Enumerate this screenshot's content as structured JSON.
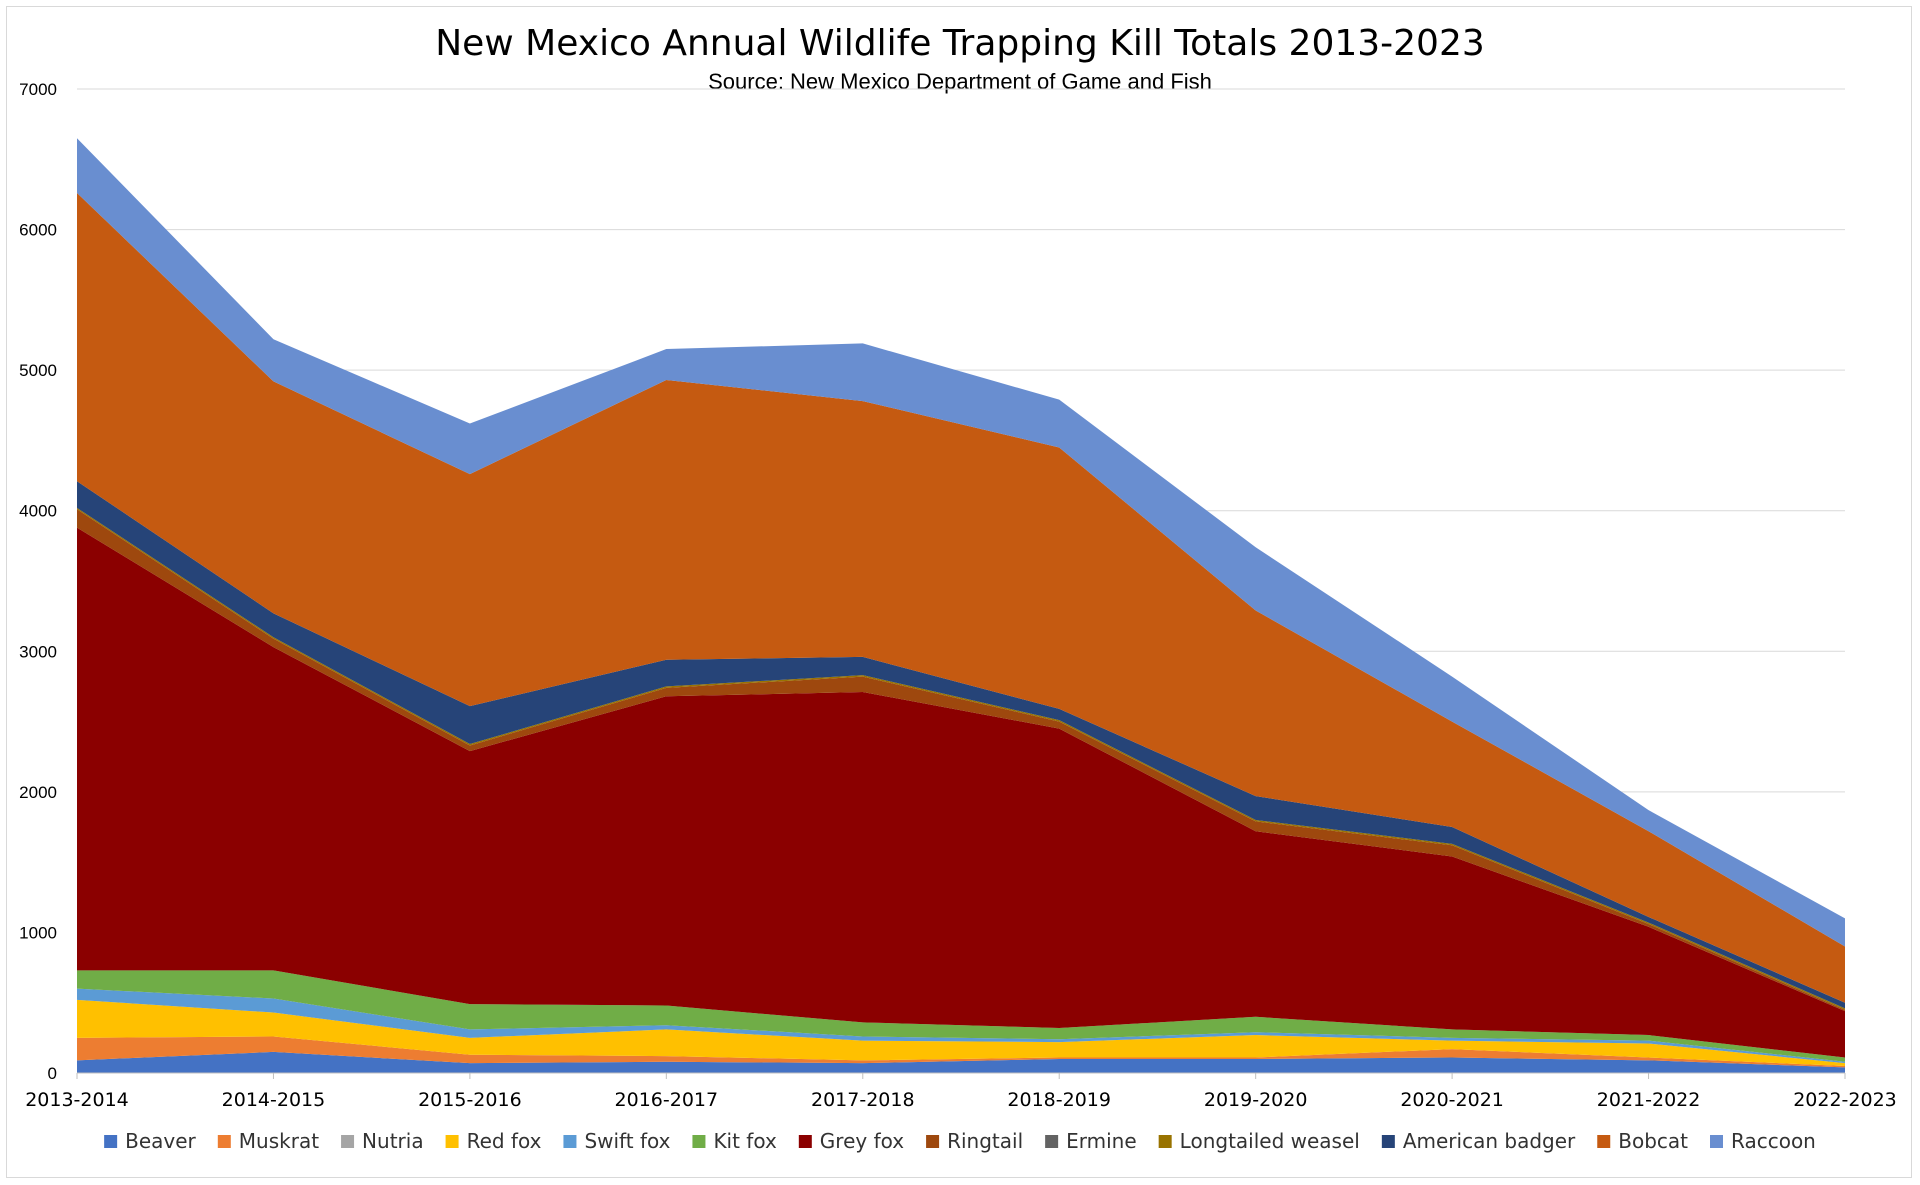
{
  "chart_data": {
    "type": "area",
    "stacked": true,
    "title": "New Mexico Annual Wildlife Trapping Kill Totals 2013-2023",
    "subtitle": "Source: New Mexico Department of Game and Fish",
    "xlabel": "",
    "ylabel": "",
    "ylim": [
      0,
      7000
    ],
    "yticks": [
      0,
      1000,
      2000,
      3000,
      4000,
      5000,
      6000,
      7000
    ],
    "grid": true,
    "legend_position": "bottom",
    "categories": [
      "2013-2014",
      "2014-2015",
      "2015-2016",
      "2016-2017",
      "2017-2018",
      "2018-2019",
      "2019-2020",
      "2020-2021",
      "2021-2022",
      "2022-2023"
    ],
    "series": [
      {
        "name": "Beaver",
        "color": "#4472C4",
        "values": [
          90,
          150,
          70,
          80,
          70,
          100,
          100,
          110,
          90,
          40
        ]
      },
      {
        "name": "Muskrat",
        "color": "#ED7D31",
        "values": [
          160,
          110,
          60,
          40,
          20,
          10,
          10,
          60,
          20,
          10
        ]
      },
      {
        "name": "Nutria",
        "color": "#A5A5A5",
        "values": [
          0,
          0,
          0,
          0,
          0,
          0,
          0,
          0,
          0,
          0
        ]
      },
      {
        "name": "Red fox",
        "color": "#FFC000",
        "values": [
          270,
          170,
          120,
          190,
          140,
          110,
          160,
          60,
          100,
          20
        ]
      },
      {
        "name": "Swift fox",
        "color": "#5B9BD5",
        "values": [
          80,
          100,
          60,
          30,
          30,
          20,
          20,
          20,
          20,
          10
        ]
      },
      {
        "name": "Kit fox",
        "color": "#70AD47",
        "values": [
          130,
          200,
          180,
          140,
          100,
          80,
          110,
          60,
          40,
          30
        ]
      },
      {
        "name": "Grey fox",
        "color": "#8B0000",
        "values": [
          3150,
          2300,
          1800,
          2200,
          2350,
          2130,
          1320,
          1230,
          770,
          330
        ]
      },
      {
        "name": "Ringtail",
        "color": "#9E480E",
        "values": [
          130,
          60,
          40,
          60,
          110,
          50,
          70,
          80,
          20,
          10
        ]
      },
      {
        "name": "Ermine",
        "color": "#636363",
        "values": [
          0,
          0,
          0,
          0,
          0,
          0,
          0,
          0,
          0,
          0
        ]
      },
      {
        "name": "Longtailed weasel",
        "color": "#997300",
        "values": [
          10,
          10,
          10,
          10,
          10,
          10,
          10,
          10,
          10,
          10
        ]
      },
      {
        "name": "American badger",
        "color": "#264478",
        "values": [
          190,
          170,
          270,
          190,
          130,
          80,
          170,
          120,
          40,
          40
        ]
      },
      {
        "name": "Bobcat",
        "color": "#C55A11",
        "values": [
          2050,
          1650,
          1650,
          1990,
          1820,
          1860,
          1320,
          750,
          610,
          400
        ]
      },
      {
        "name": "Raccoon",
        "color": "#698ED0",
        "values": [
          390,
          300,
          360,
          220,
          410,
          340,
          450,
          320,
          150,
          200
        ]
      }
    ]
  }
}
